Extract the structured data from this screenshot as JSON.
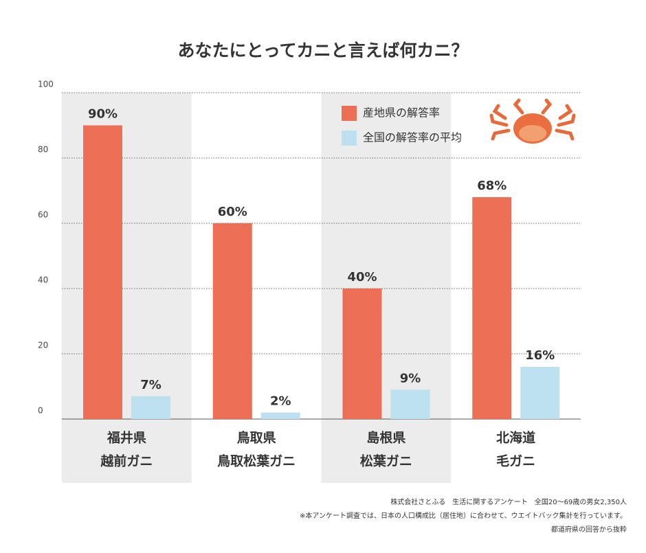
{
  "chart_data": {
    "type": "bar",
    "title": "あなたにとってカニと言えば何カニ？",
    "categories": [
      [
        "福井県",
        "越前ガニ"
      ],
      [
        "鳥取県",
        "鳥取松葉ガニ"
      ],
      [
        "島根県",
        "松葉ガニ"
      ],
      [
        "北海道",
        "毛ガニ"
      ]
    ],
    "series": [
      {
        "name": "産地県の解答率",
        "color": "#ec6e55",
        "label_color": "#e0502f",
        "values": [
          90,
          60,
          40,
          68
        ],
        "value_labels": [
          "90%",
          "60%",
          "40%",
          "68%"
        ]
      },
      {
        "name": "全国の解答率の平均",
        "color": "#bde0f0",
        "label_color": "#1f82c4",
        "values": [
          7,
          2,
          9,
          16
        ],
        "value_labels": [
          "7%",
          "2%",
          "9%",
          "16%"
        ]
      }
    ],
    "ylim": [
      0,
      100
    ],
    "yticks": [
      0,
      20,
      40,
      60,
      80,
      100
    ],
    "grid": true,
    "notes": [
      "株式会社さとふる　生活に関するアンケート　全国20〜69歳の男女2,350人",
      "※本アンケート調査では、日本の人口構成比（居住地）に合わせて、ウエイトバック集計を行っています。",
      "都道府県の回答から抜粋"
    ]
  }
}
